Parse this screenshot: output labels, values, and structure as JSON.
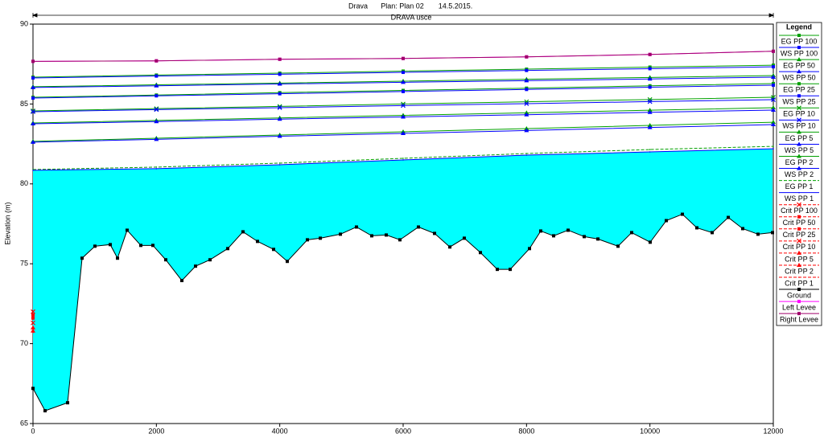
{
  "chart_data": {
    "type": "line",
    "title": "Drava",
    "plan": "Plan: Plan 02",
    "date": "14.5.2015.",
    "subtitle": "DRAVA usce",
    "y_label": "Elevation (m)",
    "legend_title": "Legend",
    "legend": "right",
    "xlim": [
      0,
      12000
    ],
    "xticks": [
      0,
      2000,
      4000,
      6000,
      8000,
      10000,
      12000
    ],
    "ylim": [
      65,
      90
    ],
    "yticks": [
      65,
      70,
      75,
      80,
      85,
      90
    ],
    "fill_color": "#00ffff",
    "series": [
      {
        "name": "EG  PP 100",
        "color": "#00a000",
        "style": "solid",
        "marker": "square",
        "x": [
          0,
          2000,
          4000,
          6000,
          8000,
          10000,
          12000
        ],
        "values": [
          86.68,
          86.81,
          86.93,
          87.06,
          87.18,
          87.31,
          87.43
        ]
      },
      {
        "name": "WS  PP 100",
        "color": "#0000ff",
        "style": "solid",
        "marker": "square",
        "x": [
          0,
          2000,
          4000,
          6000,
          8000,
          10000,
          12000
        ],
        "values": [
          86.63,
          86.75,
          86.86,
          86.98,
          87.1,
          87.21,
          87.33
        ]
      },
      {
        "name": "EG  PP 50",
        "color": "#00a000",
        "style": "solid",
        "marker": "triangle",
        "x": [
          0,
          2000,
          4000,
          6000,
          8000,
          10000,
          12000
        ],
        "values": [
          86.08,
          86.2,
          86.31,
          86.43,
          86.55,
          86.66,
          86.78
        ]
      },
      {
        "name": "WS  PP 50",
        "color": "#0000ff",
        "style": "solid",
        "marker": "triangle",
        "x": [
          0,
          2000,
          4000,
          6000,
          8000,
          10000,
          12000
        ],
        "values": [
          86.03,
          86.14,
          86.25,
          86.36,
          86.46,
          86.57,
          86.68
        ]
      },
      {
        "name": "EG  PP 25",
        "color": "#00a000",
        "style": "solid",
        "marker": "square",
        "x": [
          0,
          2000,
          4000,
          6000,
          8000,
          10000,
          12000
        ],
        "values": [
          85.42,
          85.56,
          85.71,
          85.85,
          85.99,
          86.14,
          86.28
        ]
      },
      {
        "name": "WS  PP 25",
        "color": "#0000ff",
        "style": "solid",
        "marker": "square",
        "x": [
          0,
          2000,
          4000,
          6000,
          8000,
          10000,
          12000
        ],
        "values": [
          85.37,
          85.51,
          85.64,
          85.78,
          85.91,
          86.05,
          86.18
        ]
      },
      {
        "name": "EG  PP 10",
        "color": "#00a000",
        "style": "solid",
        "marker": "cross",
        "x": [
          0,
          2000,
          4000,
          6000,
          8000,
          10000,
          12000
        ],
        "values": [
          84.57,
          84.71,
          84.85,
          85.0,
          85.14,
          85.28,
          85.42
        ]
      },
      {
        "name": "WS  PP 10",
        "color": "#0000ff",
        "style": "solid",
        "marker": "cross",
        "x": [
          0,
          2000,
          4000,
          6000,
          8000,
          10000,
          12000
        ],
        "values": [
          84.52,
          84.65,
          84.77,
          84.9,
          85.02,
          85.15,
          85.27
        ]
      },
      {
        "name": "EG  PP 5",
        "color": "#00a000",
        "style": "solid",
        "marker": "triangle",
        "x": [
          0,
          2000,
          4000,
          6000,
          8000,
          10000,
          12000
        ],
        "values": [
          83.81,
          83.97,
          84.13,
          84.29,
          84.45,
          84.61,
          84.77
        ]
      },
      {
        "name": "WS  PP 5",
        "color": "#0000ff",
        "style": "solid",
        "marker": "triangle",
        "x": [
          0,
          2000,
          4000,
          6000,
          8000,
          10000,
          12000
        ],
        "values": [
          83.76,
          83.9,
          84.05,
          84.19,
          84.33,
          84.48,
          84.62
        ]
      },
      {
        "name": "EG  PP 2",
        "color": "#00a000",
        "style": "solid",
        "marker": "triangle",
        "x": [
          0,
          2000,
          4000,
          6000,
          8000,
          10000,
          12000
        ],
        "values": [
          82.66,
          82.86,
          83.06,
          83.26,
          83.46,
          83.66,
          83.86
        ]
      },
      {
        "name": "WS  PP 2",
        "color": "#0000ff",
        "style": "solid",
        "marker": "triangle",
        "x": [
          0,
          2000,
          4000,
          6000,
          8000,
          10000,
          12000
        ],
        "values": [
          82.61,
          82.79,
          82.98,
          83.16,
          83.34,
          83.53,
          83.71
        ]
      },
      {
        "name": "EG  PP 1",
        "color": "#00a000",
        "style": "dashed",
        "marker": "none",
        "x": [
          0,
          2000,
          4000,
          6000,
          8000,
          10000,
          12000
        ],
        "values": [
          80.9,
          81.05,
          81.3,
          81.6,
          81.9,
          82.15,
          82.35
        ]
      },
      {
        "name": "WS  PP 1",
        "color": "#0000ff",
        "style": "solid",
        "marker": "none",
        "fill": true,
        "x": [
          0,
          2000,
          4000,
          6000,
          8000,
          10000,
          12000
        ],
        "values": [
          80.85,
          80.95,
          81.2,
          81.5,
          81.8,
          82.0,
          82.2
        ]
      },
      {
        "name": "Crit  PP 100",
        "color": "#ff0000",
        "style": "dashed",
        "marker": "cross",
        "x": [
          0
        ],
        "values": [
          72.0
        ]
      },
      {
        "name": "Crit  PP 50",
        "color": "#ff0000",
        "style": "dashed",
        "marker": "square",
        "x": [
          0
        ],
        "values": [
          71.8
        ]
      },
      {
        "name": "Crit  PP 25",
        "color": "#ff0000",
        "style": "dashed",
        "marker": "square",
        "x": [
          0
        ],
        "values": [
          71.6
        ]
      },
      {
        "name": "Crit  PP 10",
        "color": "#ff0000",
        "style": "dashed",
        "marker": "cross",
        "x": [
          0
        ],
        "values": [
          71.3
        ]
      },
      {
        "name": "Crit  PP 5",
        "color": "#ff0000",
        "style": "dashed",
        "marker": "triangle",
        "x": [
          0
        ],
        "values": [
          71.0
        ]
      },
      {
        "name": "Crit  PP 2",
        "color": "#ff0000",
        "style": "dashed",
        "marker": "triangle",
        "x": [
          0
        ],
        "values": [
          70.8
        ]
      },
      {
        "name": "Crit  PP 1",
        "color": "#ff0000",
        "style": "dashed",
        "marker": "none",
        "x": [
          0
        ],
        "values": [
          70.7
        ]
      },
      {
        "name": "Ground",
        "color": "#000000",
        "style": "solid",
        "marker": "square",
        "x": [
          0,
          196,
          561,
          796,
          1004,
          1252,
          1370,
          1526,
          1748,
          1943,
          2152,
          2413,
          2635,
          2870,
          3157,
          3404,
          3639,
          3900,
          4122,
          4448,
          4657,
          4983,
          5243,
          5491,
          5726,
          5948,
          6248,
          6509,
          6757,
          6991,
          7252,
          7526,
          7735,
          8048,
          8230,
          8439,
          8674,
          8935,
          9157,
          9483,
          9704,
          10004,
          10265,
          10526,
          10761,
          11009,
          11270,
          11504,
          11752,
          11987
        ],
        "values": [
          67.2,
          65.8,
          66.3,
          75.35,
          76.1,
          76.2,
          75.35,
          77.1,
          76.15,
          76.15,
          75.25,
          73.95,
          74.85,
          75.25,
          75.95,
          77.0,
          76.4,
          75.9,
          75.15,
          76.5,
          76.6,
          76.85,
          77.3,
          76.75,
          76.8,
          76.5,
          77.3,
          76.9,
          76.05,
          76.6,
          75.7,
          74.65,
          74.65,
          75.95,
          77.05,
          76.75,
          77.1,
          76.7,
          76.55,
          76.1,
          76.95,
          76.35,
          77.7,
          78.1,
          77.25,
          76.95,
          77.9,
          77.2,
          76.85,
          76.95
        ]
      },
      {
        "name": "Left Levee",
        "color": "#ff00ff",
        "style": "solid",
        "marker": "square",
        "x": [
          0,
          2000,
          4000,
          6000,
          8000,
          10000,
          12000
        ],
        "values": [
          87.67,
          87.7,
          87.8,
          87.85,
          87.95,
          88.1,
          88.3
        ]
      },
      {
        "name": "Right Levee",
        "color": "#a0006a",
        "style": "solid",
        "marker": "square",
        "x": [
          0,
          2000,
          4000,
          6000,
          8000,
          10000,
          12000
        ],
        "values": [
          87.67,
          87.7,
          87.8,
          87.85,
          87.95,
          88.1,
          88.3
        ]
      }
    ]
  }
}
